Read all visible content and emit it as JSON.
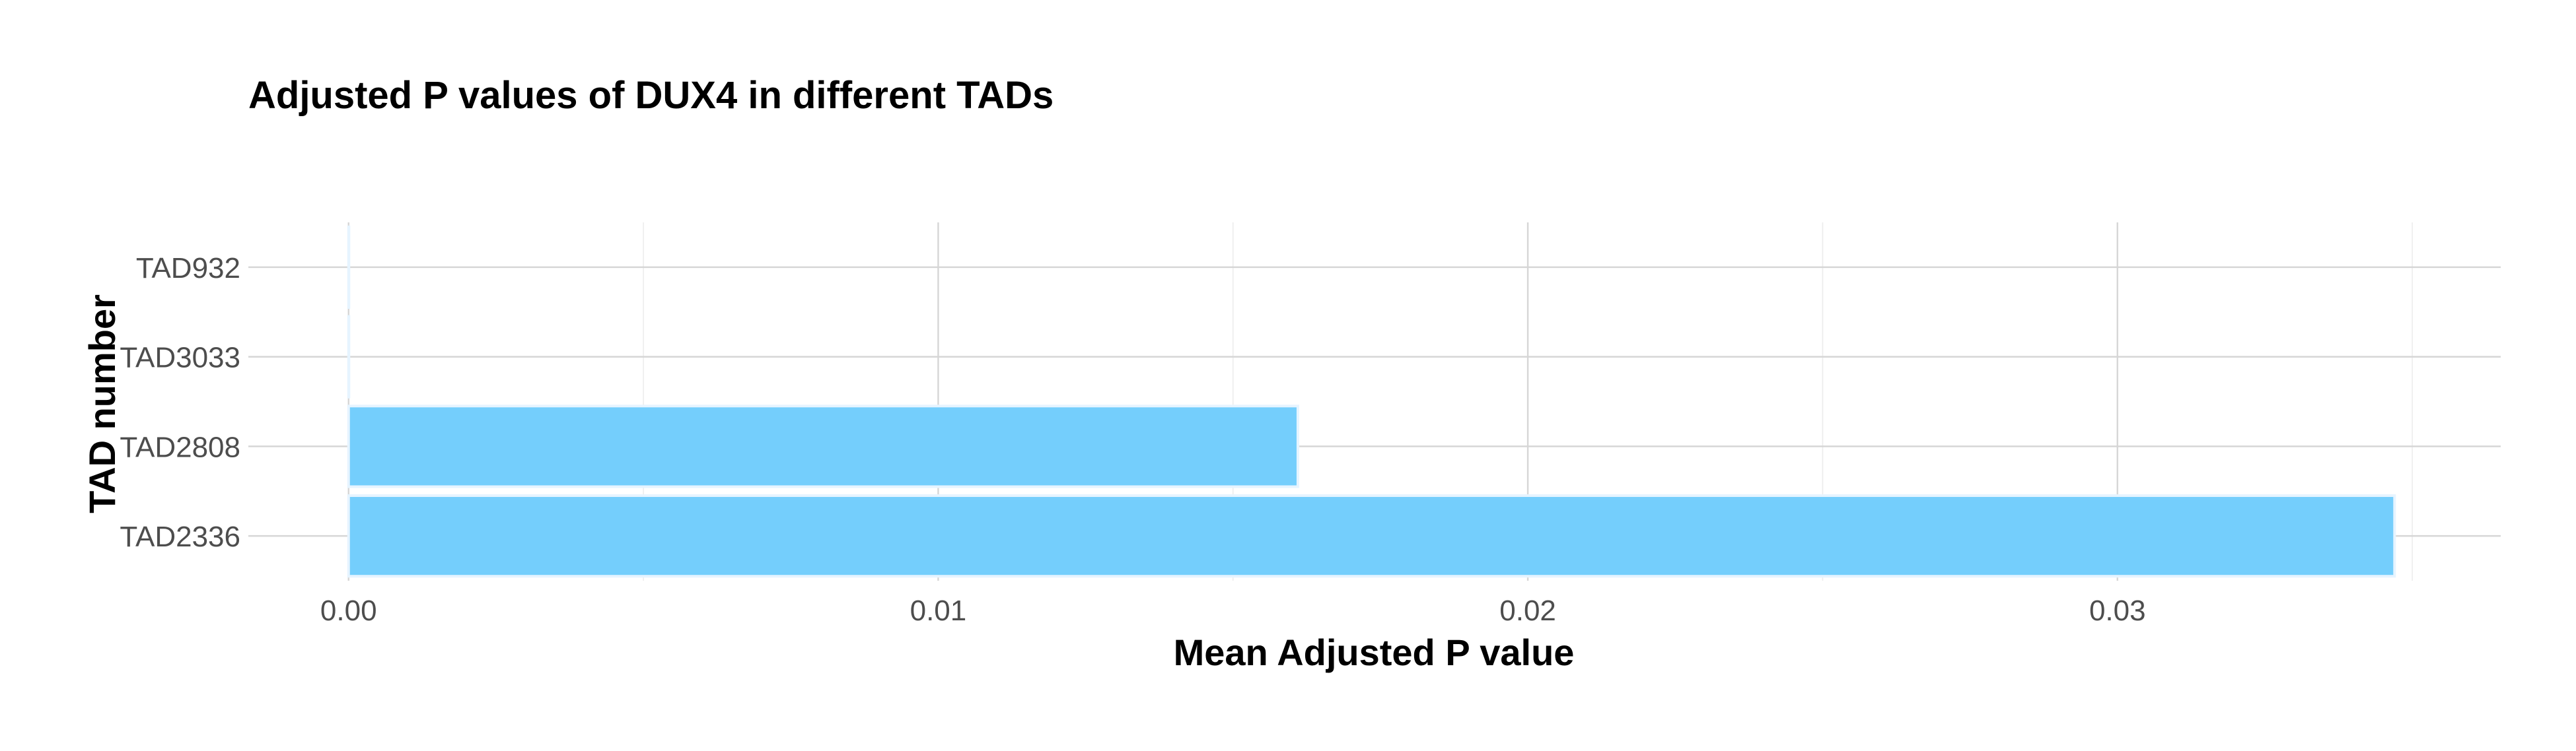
{
  "chart_data": {
    "type": "bar",
    "orientation": "horizontal",
    "title": "Adjusted P values of DUX4 in different TADs",
    "xlabel": "Mean Adjusted P value",
    "ylabel": "TAD number",
    "categories": [
      "TAD2336",
      "TAD2808",
      "TAD3033",
      "TAD932"
    ],
    "values": [
      0.0347,
      0.0161,
      0.0,
      0.0
    ],
    "xlim": [
      -0.0017,
      0.0365
    ],
    "x_ticks": [
      0.0,
      0.01,
      0.02,
      0.03
    ],
    "x_tick_labels": [
      "0.00",
      "0.01",
      "0.02",
      "0.03"
    ],
    "grid": true,
    "legend": "none",
    "bar_color": "#74CEFC"
  }
}
